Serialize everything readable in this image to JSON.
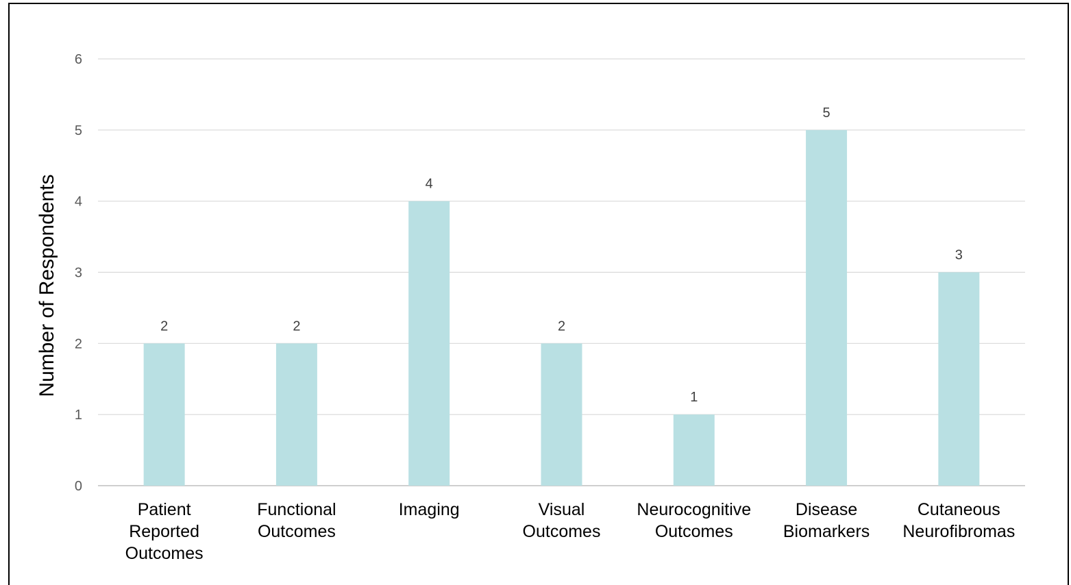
{
  "chart_data": {
    "type": "bar",
    "categories": [
      [
        "Patient",
        "Reported",
        "Outcomes"
      ],
      [
        "Functional",
        "Outcomes"
      ],
      [
        "Imaging"
      ],
      [
        "Visual",
        "Outcomes"
      ],
      [
        "Neurocognitive",
        "Outcomes"
      ],
      [
        "Disease",
        "Biomarkers"
      ],
      [
        "Cutaneous",
        "Neurofibromas"
      ]
    ],
    "values": [
      2,
      2,
      4,
      2,
      1,
      5,
      3
    ],
    "data_labels": [
      "2",
      "2",
      "4",
      "2",
      "1",
      "5",
      "3"
    ],
    "title": "",
    "xlabel": "",
    "ylabel": "Number of  Respondents",
    "ylim": [
      0,
      6
    ],
    "yticks": [
      "0",
      "1",
      "2",
      "3",
      "4",
      "5",
      "6"
    ],
    "grid": true,
    "legend": "none",
    "colors": {
      "bar": "#b9e0e3",
      "grid": "#d9d9d9",
      "axis": "#bfbfbf"
    }
  }
}
